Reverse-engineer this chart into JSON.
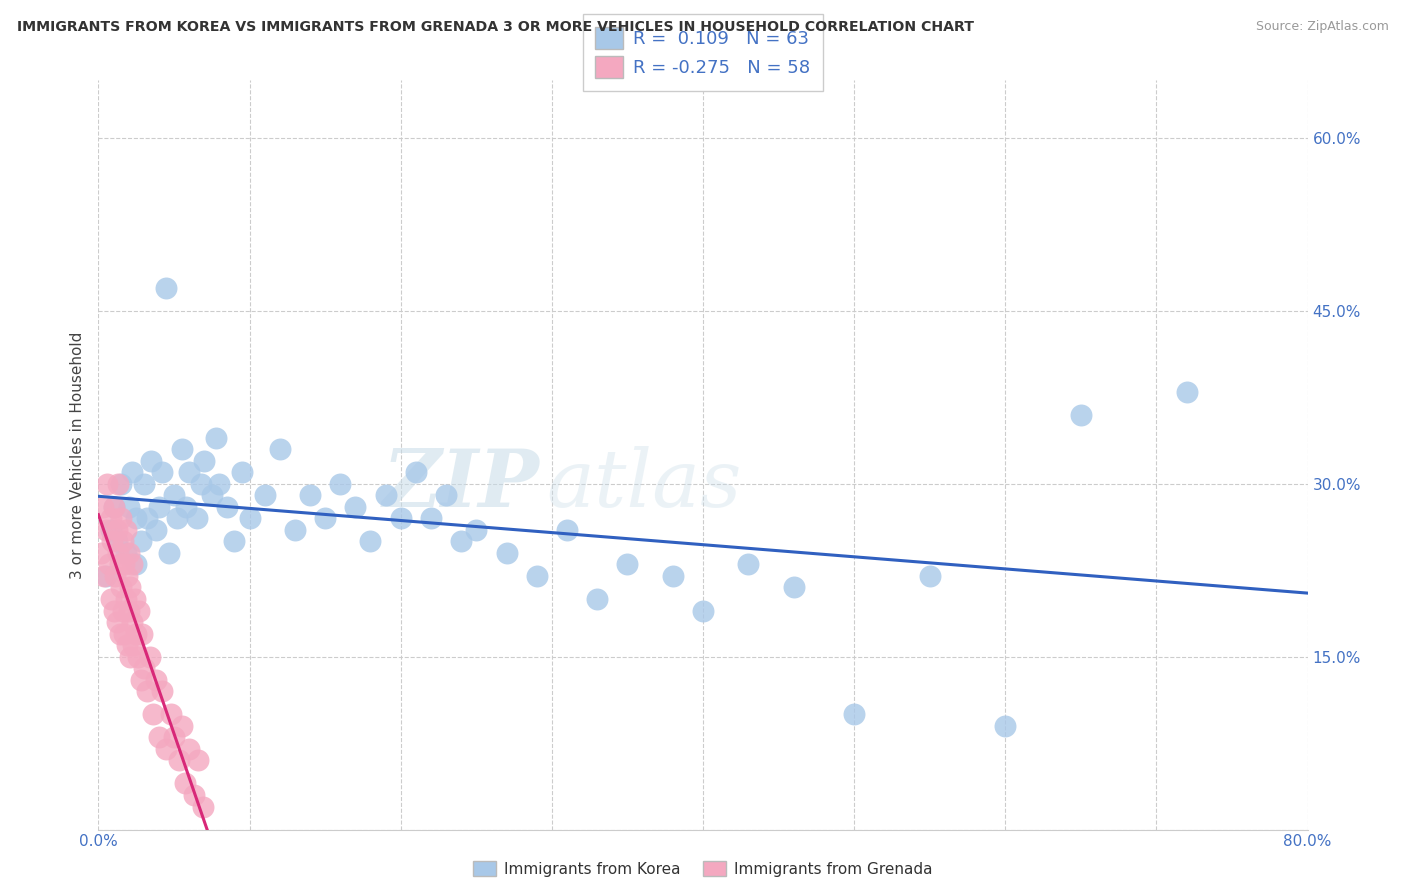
{
  "title": "IMMIGRANTS FROM KOREA VS IMMIGRANTS FROM GRENADA 3 OR MORE VEHICLES IN HOUSEHOLD CORRELATION CHART",
  "source": "Source: ZipAtlas.com",
  "ylabel": "3 or more Vehicles in Household",
  "xlim": [
    0.0,
    0.8
  ],
  "ylim": [
    0.0,
    0.65
  ],
  "korea_R": 0.109,
  "korea_N": 63,
  "grenada_R": -0.275,
  "grenada_N": 58,
  "korea_color": "#a8c8e8",
  "grenada_color": "#f4a8c0",
  "korea_line_color": "#3060c0",
  "grenada_line_color": "#d82878",
  "watermark_zip": "ZIP",
  "watermark_atlas": "atlas",
  "legend_korea": "Immigrants from Korea",
  "legend_grenada": "Immigrants from Grenada",
  "korea_x": [
    0.005,
    0.008,
    0.01,
    0.012,
    0.015,
    0.018,
    0.02,
    0.022,
    0.025,
    0.025,
    0.028,
    0.03,
    0.032,
    0.035,
    0.038,
    0.04,
    0.042,
    0.045,
    0.047,
    0.05,
    0.052,
    0.055,
    0.058,
    0.06,
    0.065,
    0.068,
    0.07,
    0.075,
    0.078,
    0.08,
    0.085,
    0.09,
    0.095,
    0.1,
    0.11,
    0.12,
    0.13,
    0.14,
    0.15,
    0.16,
    0.17,
    0.18,
    0.19,
    0.2,
    0.21,
    0.22,
    0.23,
    0.24,
    0.25,
    0.27,
    0.29,
    0.31,
    0.33,
    0.35,
    0.38,
    0.4,
    0.43,
    0.46,
    0.5,
    0.55,
    0.6,
    0.65,
    0.72
  ],
  "korea_y": [
    0.22,
    0.26,
    0.28,
    0.25,
    0.3,
    0.24,
    0.28,
    0.31,
    0.23,
    0.27,
    0.25,
    0.3,
    0.27,
    0.32,
    0.26,
    0.28,
    0.31,
    0.47,
    0.24,
    0.29,
    0.27,
    0.33,
    0.28,
    0.31,
    0.27,
    0.3,
    0.32,
    0.29,
    0.34,
    0.3,
    0.28,
    0.25,
    0.31,
    0.27,
    0.29,
    0.33,
    0.26,
    0.29,
    0.27,
    0.3,
    0.28,
    0.25,
    0.29,
    0.27,
    0.31,
    0.27,
    0.29,
    0.25,
    0.26,
    0.24,
    0.22,
    0.26,
    0.2,
    0.23,
    0.22,
    0.19,
    0.23,
    0.21,
    0.1,
    0.22,
    0.09,
    0.36,
    0.38
  ],
  "grenada_x": [
    0.002,
    0.003,
    0.004,
    0.005,
    0.006,
    0.007,
    0.008,
    0.008,
    0.009,
    0.01,
    0.01,
    0.011,
    0.012,
    0.012,
    0.013,
    0.013,
    0.014,
    0.014,
    0.015,
    0.015,
    0.016,
    0.016,
    0.017,
    0.017,
    0.018,
    0.018,
    0.019,
    0.019,
    0.02,
    0.02,
    0.021,
    0.021,
    0.022,
    0.022,
    0.023,
    0.024,
    0.025,
    0.026,
    0.027,
    0.028,
    0.029,
    0.03,
    0.032,
    0.034,
    0.036,
    0.038,
    0.04,
    0.042,
    0.045,
    0.048,
    0.05,
    0.053,
    0.055,
    0.057,
    0.06,
    0.063,
    0.066,
    0.069
  ],
  "grenada_y": [
    0.24,
    0.28,
    0.22,
    0.26,
    0.3,
    0.23,
    0.27,
    0.2,
    0.25,
    0.19,
    0.28,
    0.22,
    0.26,
    0.18,
    0.24,
    0.3,
    0.17,
    0.23,
    0.21,
    0.27,
    0.19,
    0.25,
    0.17,
    0.23,
    0.2,
    0.26,
    0.16,
    0.22,
    0.19,
    0.24,
    0.15,
    0.21,
    0.18,
    0.23,
    0.16,
    0.2,
    0.17,
    0.15,
    0.19,
    0.13,
    0.17,
    0.14,
    0.12,
    0.15,
    0.1,
    0.13,
    0.08,
    0.12,
    0.07,
    0.1,
    0.08,
    0.06,
    0.09,
    0.04,
    0.07,
    0.03,
    0.06,
    0.02
  ]
}
